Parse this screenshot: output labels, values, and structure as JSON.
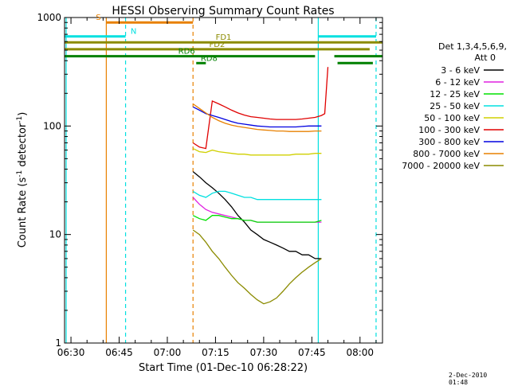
{
  "chart_data": {
    "type": "line",
    "title": "HESSI Observing Summary Count Rates",
    "xlabel": "Start Time (01-Dec-10 06:28:22)",
    "ylabel_main": "Count Rate (s",
    "ylabel_sup1": "-1",
    "ylabel_mid": " detector",
    "ylabel_sup2": "-1",
    "ylabel_end": ")",
    "ylog": true,
    "xlim": [
      "06:28",
      "08:07"
    ],
    "ylim": [
      1,
      1000
    ],
    "x_tick_labels": [
      "06:30",
      "06:45",
      "07:00",
      "07:15",
      "07:30",
      "07:45",
      "08:00"
    ],
    "y_tick_labels": [
      "1",
      "10",
      "100",
      "1000"
    ],
    "legend_header": [
      "Det 1,3,4,5,6,9,",
      "Att 0"
    ],
    "legend_placement": "right",
    "series": [
      {
        "name": "3 - 6 keV",
        "color": "#000000",
        "x": [
          "07:08",
          "07:10",
          "07:12",
          "07:14",
          "07:16",
          "07:18",
          "07:20",
          "07:22",
          "07:24",
          "07:26",
          "07:28",
          "07:30",
          "07:32",
          "07:34",
          "07:36",
          "07:38",
          "07:40",
          "07:42",
          "07:44",
          "07:46",
          "07:48"
        ],
        "y": [
          38,
          34,
          30,
          27,
          24,
          21,
          18,
          15,
          13,
          11,
          10,
          9,
          8.5,
          8,
          7.5,
          7,
          7,
          6.5,
          6.5,
          6,
          6
        ]
      },
      {
        "name": "6 - 12 keV",
        "color": "#e020e0",
        "x": [
          "07:08",
          "07:10",
          "07:12",
          "07:14",
          "07:16",
          "07:18",
          "07:20",
          "07:22",
          "07:24",
          "07:26",
          "07:28",
          "07:30",
          "07:32",
          "07:34",
          "07:36",
          "07:38",
          "07:40",
          "07:42",
          "07:44",
          "07:46",
          "07:48"
        ],
        "y": [
          22,
          19,
          17,
          16,
          15.5,
          15,
          14.5,
          14,
          13.5,
          13.5,
          13,
          13,
          13,
          13,
          13,
          13,
          13,
          13,
          13,
          13,
          13
        ]
      },
      {
        "name": "12 - 25 keV",
        "color": "#00e000",
        "x": [
          "07:08",
          "07:10",
          "07:12",
          "07:14",
          "07:16",
          "07:18",
          "07:20",
          "07:22",
          "07:24",
          "07:26",
          "07:28",
          "07:30",
          "07:32",
          "07:34",
          "07:36",
          "07:38",
          "07:40",
          "07:42",
          "07:44",
          "07:46",
          "07:48"
        ],
        "y": [
          15,
          14,
          13.5,
          15,
          15,
          14.5,
          14,
          14,
          13.5,
          13.5,
          13,
          13,
          13,
          13,
          13,
          13,
          13,
          13,
          13,
          13,
          13.5
        ]
      },
      {
        "name": "25 - 50 keV",
        "color": "#00e0e0",
        "x": [
          "07:08",
          "07:10",
          "07:12",
          "07:14",
          "07:16",
          "07:18",
          "07:20",
          "07:22",
          "07:24",
          "07:26",
          "07:28",
          "07:30",
          "07:32",
          "07:34",
          "07:36",
          "07:38",
          "07:40",
          "07:42",
          "07:44",
          "07:46",
          "07:48"
        ],
        "y": [
          25,
          23,
          22,
          24,
          25,
          25,
          24,
          23,
          22,
          22,
          21,
          21,
          21,
          21,
          21,
          21,
          21,
          21,
          21,
          21,
          21
        ]
      },
      {
        "name": "50 - 100 keV",
        "color": "#d0d000",
        "x": [
          "07:08",
          "07:10",
          "07:12",
          "07:14",
          "07:16",
          "07:18",
          "07:20",
          "07:22",
          "07:24",
          "07:26",
          "07:28",
          "07:30",
          "07:32",
          "07:34",
          "07:36",
          "07:38",
          "07:40",
          "07:42",
          "07:44",
          "07:46",
          "07:48"
        ],
        "y": [
          62,
          58,
          57,
          60,
          58,
          57,
          56,
          55,
          55,
          54,
          54,
          54,
          54,
          54,
          54,
          54,
          55,
          55,
          55,
          56,
          56
        ]
      },
      {
        "name": "100 - 300 keV",
        "color": "#e00000",
        "x": [
          "07:08",
          "07:10",
          "07:12",
          "07:14",
          "07:16",
          "07:18",
          "07:20",
          "07:22",
          "07:24",
          "07:26",
          "07:28",
          "07:30",
          "07:32",
          "07:34",
          "07:36",
          "07:38",
          "07:40",
          "07:42",
          "07:44",
          "07:46",
          "07:48",
          "07:49",
          "07:50"
        ],
        "y": [
          70,
          64,
          62,
          170,
          160,
          150,
          140,
          132,
          126,
          122,
          120,
          118,
          116,
          115,
          115,
          115,
          115,
          116,
          118,
          120,
          125,
          130,
          350
        ]
      },
      {
        "name": "300 - 800 keV",
        "color": "#0000e0",
        "x": [
          "07:08",
          "07:10",
          "07:12",
          "07:14",
          "07:16",
          "07:18",
          "07:20",
          "07:22",
          "07:24",
          "07:26",
          "07:28",
          "07:30",
          "07:32",
          "07:34",
          "07:36",
          "07:38",
          "07:40",
          "07:42",
          "07:44",
          "07:46",
          "07:48"
        ],
        "y": [
          150,
          140,
          130,
          125,
          120,
          115,
          110,
          106,
          104,
          102,
          100,
          99,
          98,
          98,
          98,
          98,
          98,
          99,
          100,
          100,
          100
        ]
      },
      {
        "name": "800 - 7000 keV",
        "color": "#e88000",
        "x": [
          "07:08",
          "07:10",
          "07:12",
          "07:14",
          "07:16",
          "07:18",
          "07:20",
          "07:22",
          "07:24",
          "07:26",
          "07:28",
          "07:30",
          "07:32",
          "07:34",
          "07:36",
          "07:38",
          "07:40",
          "07:42",
          "07:44",
          "07:46",
          "07:48"
        ],
        "y": [
          160,
          145,
          132,
          120,
          112,
          106,
          102,
          99,
          97,
          95,
          93,
          92,
          91,
          90,
          90,
          89,
          89,
          89,
          89,
          90,
          90
        ]
      },
      {
        "name": "7000 - 20000 keV",
        "color": "#8b8b00",
        "x": [
          "07:08",
          "07:10",
          "07:12",
          "07:14",
          "07:16",
          "07:18",
          "07:20",
          "07:22",
          "07:24",
          "07:26",
          "07:28",
          "07:30",
          "07:32",
          "07:34",
          "07:36",
          "07:38",
          "07:40",
          "07:42",
          "07:44",
          "07:46",
          "07:48"
        ],
        "y": [
          11,
          10,
          8.5,
          7,
          6,
          5,
          4.2,
          3.6,
          3.2,
          2.8,
          2.5,
          2.3,
          2.4,
          2.6,
          3,
          3.5,
          4,
          4.5,
          5,
          5.5,
          6
        ]
      }
    ],
    "vertical_lines": [
      {
        "time": "06:28.5",
        "color": "#00e0e0",
        "style": "solid"
      },
      {
        "time": "06:41",
        "color": "#e88000",
        "style": "solid"
      },
      {
        "time": "06:47",
        "color": "#00e0e0",
        "style": "dashed"
      },
      {
        "time": "07:08",
        "color": "#e88000",
        "style": "dashed"
      },
      {
        "time": "07:47",
        "color": "#00e0e0",
        "style": "solid"
      },
      {
        "time": "08:05",
        "color": "#00e0e0",
        "style": "dashed"
      }
    ],
    "flag_bars": [
      {
        "label": "S",
        "color": "#e88000",
        "segments": [
          [
            "06:41",
            "07:08"
          ]
        ],
        "level": 900
      },
      {
        "label": "N",
        "color": "#00e0e0",
        "segments": [
          [
            "06:28",
            "06:47"
          ],
          [
            "07:47",
            "08:05"
          ]
        ],
        "level": 670
      },
      {
        "label": "FD1",
        "color": "#8b8b00",
        "segments": [
          [
            "06:28",
            "08:07"
          ]
        ],
        "level": 590
      },
      {
        "label": "FD2",
        "color": "#8b8b00",
        "segments": [
          [
            "06:28",
            "08:03"
          ]
        ],
        "level": 510
      },
      {
        "label": "RD6",
        "color": "#008000",
        "segments": [
          [
            "06:28",
            "07:46"
          ],
          [
            "07:52",
            "08:07"
          ]
        ],
        "level": 440
      },
      {
        "label": "RD8",
        "color": "#008000",
        "segments": [
          [
            "07:09",
            "07:12"
          ],
          [
            "07:53",
            "08:04"
          ]
        ],
        "level": 380
      }
    ]
  },
  "timestamp": "2-Dec-2010 01:48"
}
